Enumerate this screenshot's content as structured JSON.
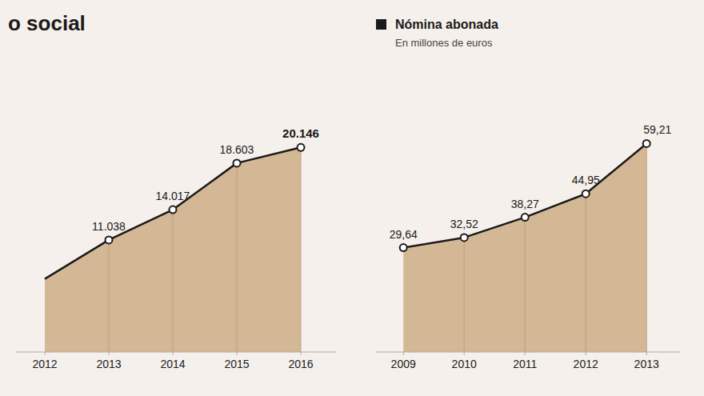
{
  "chart_data": [
    {
      "type": "area",
      "title": "o social",
      "x": [
        2012,
        2013,
        2014,
        2015,
        2016
      ],
      "values": [
        7200,
        11038,
        14017,
        18603,
        20146
      ],
      "value_labels": [
        null,
        "11.038",
        "14.017",
        "18.603",
        "20.146"
      ],
      "color": "#d4b896",
      "marker": "circle",
      "data_labels": true,
      "xlim": [
        2011.55,
        2016.55
      ],
      "xticks": [
        2012,
        2013,
        2014,
        2015,
        2016
      ],
      "ylim": [
        0,
        26000
      ],
      "tick_labels": "x",
      "grid": false
    },
    {
      "type": "area",
      "subtitle": "En millones de euros",
      "x": [
        2009,
        2010,
        2011,
        2012,
        2013
      ],
      "series": [
        {
          "name": "Nómina abonada",
          "color": "#d4b896",
          "marker": "circle",
          "values": [
            29.64,
            32.52,
            38.27,
            44.95,
            59.21
          ],
          "value_labels": [
            "29,64",
            "32,52",
            "38,27",
            "44,95",
            "59,21"
          ]
        }
      ],
      "data_labels": true,
      "legend": "upper left",
      "xlim": [
        2008.55,
        2013.55
      ],
      "xticks": [
        2009,
        2010,
        2011,
        2012,
        2013
      ],
      "ylim": [
        0,
        75
      ],
      "tick_labels": "x",
      "grid": false
    }
  ]
}
